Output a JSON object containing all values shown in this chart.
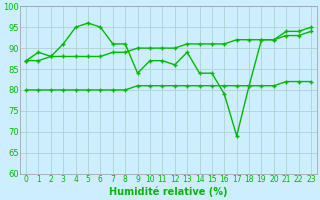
{
  "xlabel": "Humidité relative (%)",
  "background_color": "#cceeff",
  "grid_color": "#aacccc",
  "line_color": "#00bb00",
  "xlim": [
    -0.5,
    23.5
  ],
  "ylim": [
    60,
    100
  ],
  "yticks": [
    60,
    65,
    70,
    75,
    80,
    85,
    90,
    95,
    100
  ],
  "xticks": [
    0,
    1,
    2,
    3,
    4,
    5,
    6,
    7,
    8,
    9,
    10,
    11,
    12,
    13,
    14,
    15,
    16,
    17,
    18,
    19,
    20,
    21,
    22,
    23
  ],
  "line1_x": [
    0,
    1,
    2,
    3,
    4,
    5,
    6,
    7,
    8,
    9,
    10,
    11,
    12,
    13,
    14,
    15,
    16,
    17,
    18,
    19,
    20,
    21,
    22,
    23
  ],
  "line1_y": [
    87,
    89,
    88,
    91,
    95,
    96,
    95,
    91,
    91,
    84,
    87,
    87,
    86,
    89,
    84,
    84,
    79,
    69,
    81,
    92,
    92,
    94,
    94,
    95
  ],
  "line2_x": [
    0,
    1,
    2,
    3,
    4,
    5,
    6,
    7,
    8,
    9,
    10,
    11,
    12,
    13,
    14,
    15,
    16,
    17,
    18,
    19,
    20,
    21,
    22,
    23
  ],
  "line2_y": [
    87,
    87,
    88,
    88,
    88,
    88,
    88,
    89,
    89,
    90,
    90,
    90,
    90,
    91,
    91,
    91,
    91,
    92,
    92,
    92,
    92,
    93,
    93,
    94
  ],
  "line3_x": [
    0,
    1,
    2,
    3,
    4,
    5,
    6,
    7,
    8,
    9,
    10,
    11,
    12,
    13,
    14,
    15,
    16,
    17,
    18,
    19,
    20,
    21,
    22,
    23
  ],
  "line3_y": [
    80,
    80,
    80,
    80,
    80,
    80,
    80,
    80,
    80,
    81,
    81,
    81,
    81,
    81,
    81,
    81,
    81,
    81,
    81,
    81,
    81,
    82,
    82,
    82
  ],
  "xlabel_fontsize": 7,
  "tick_fontsize": 5.5,
  "ytick_fontsize": 6
}
